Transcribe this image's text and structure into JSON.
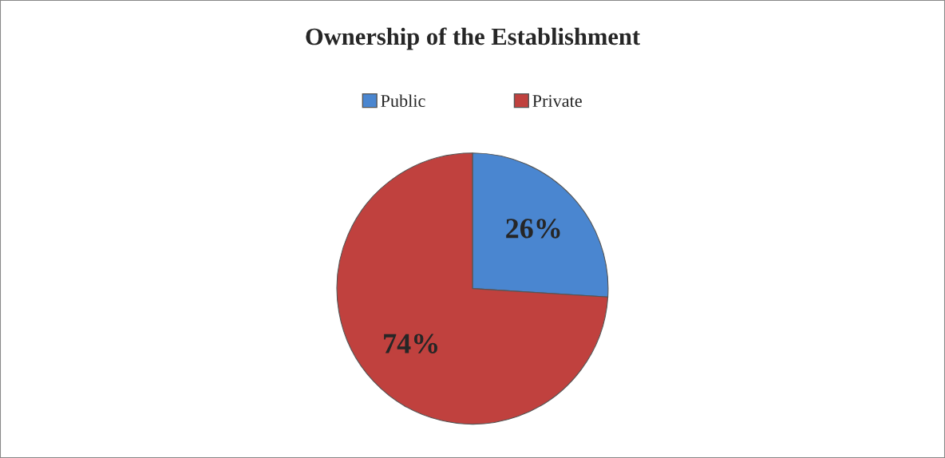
{
  "chart_data": {
    "type": "pie",
    "title": "Ownership of the Establishment",
    "categories": [
      "Public",
      "Private"
    ],
    "values": [
      26,
      74
    ],
    "colors": [
      "#4a86d0",
      "#c0413e"
    ],
    "value_labels": [
      "26%",
      "74%"
    ],
    "legend": "top"
  }
}
